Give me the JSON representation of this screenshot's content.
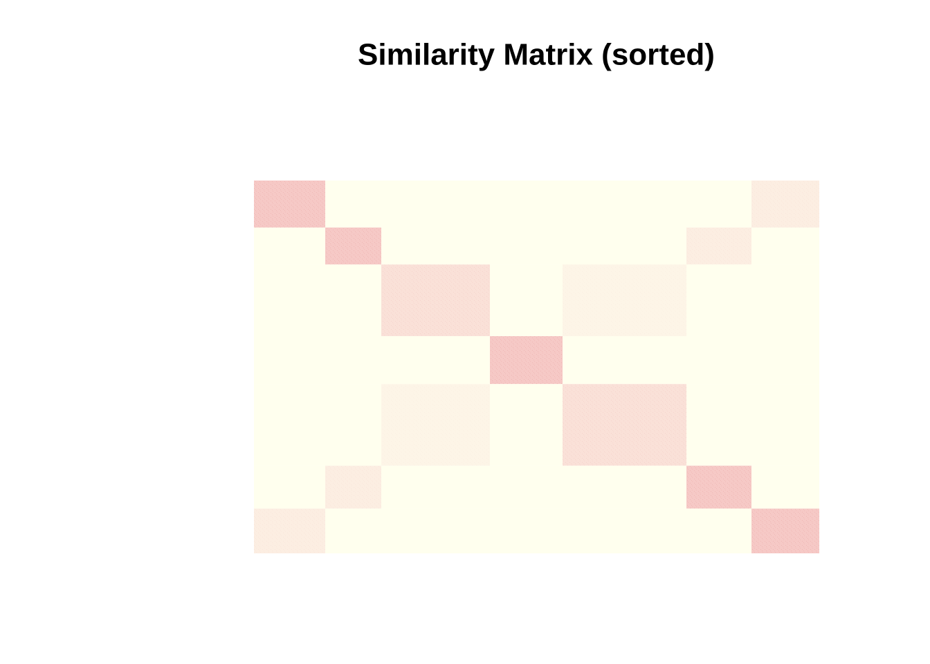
{
  "chart_data": {
    "type": "heatmap",
    "title": "Similarity Matrix (sorted)",
    "cluster_sizes": [
      103,
      81,
      157,
      105,
      179,
      94,
      98
    ],
    "values": [
      [
        0.8,
        0,
        0,
        0,
        0,
        0,
        0.25
      ],
      [
        0,
        0.8,
        0,
        0,
        0,
        0.25,
        0
      ],
      [
        0,
        0,
        0.45,
        0,
        0.15,
        0,
        0
      ],
      [
        0,
        0,
        0,
        0.8,
        0,
        0,
        0
      ],
      [
        0,
        0,
        0.15,
        0,
        0.45,
        0,
        0
      ],
      [
        0,
        0.25,
        0,
        0,
        0,
        0.8,
        0
      ],
      [
        0.25,
        0,
        0,
        0,
        0,
        0,
        0.8
      ]
    ],
    "colorscale": [
      "#ffffee",
      "#f4bcbc"
    ]
  }
}
